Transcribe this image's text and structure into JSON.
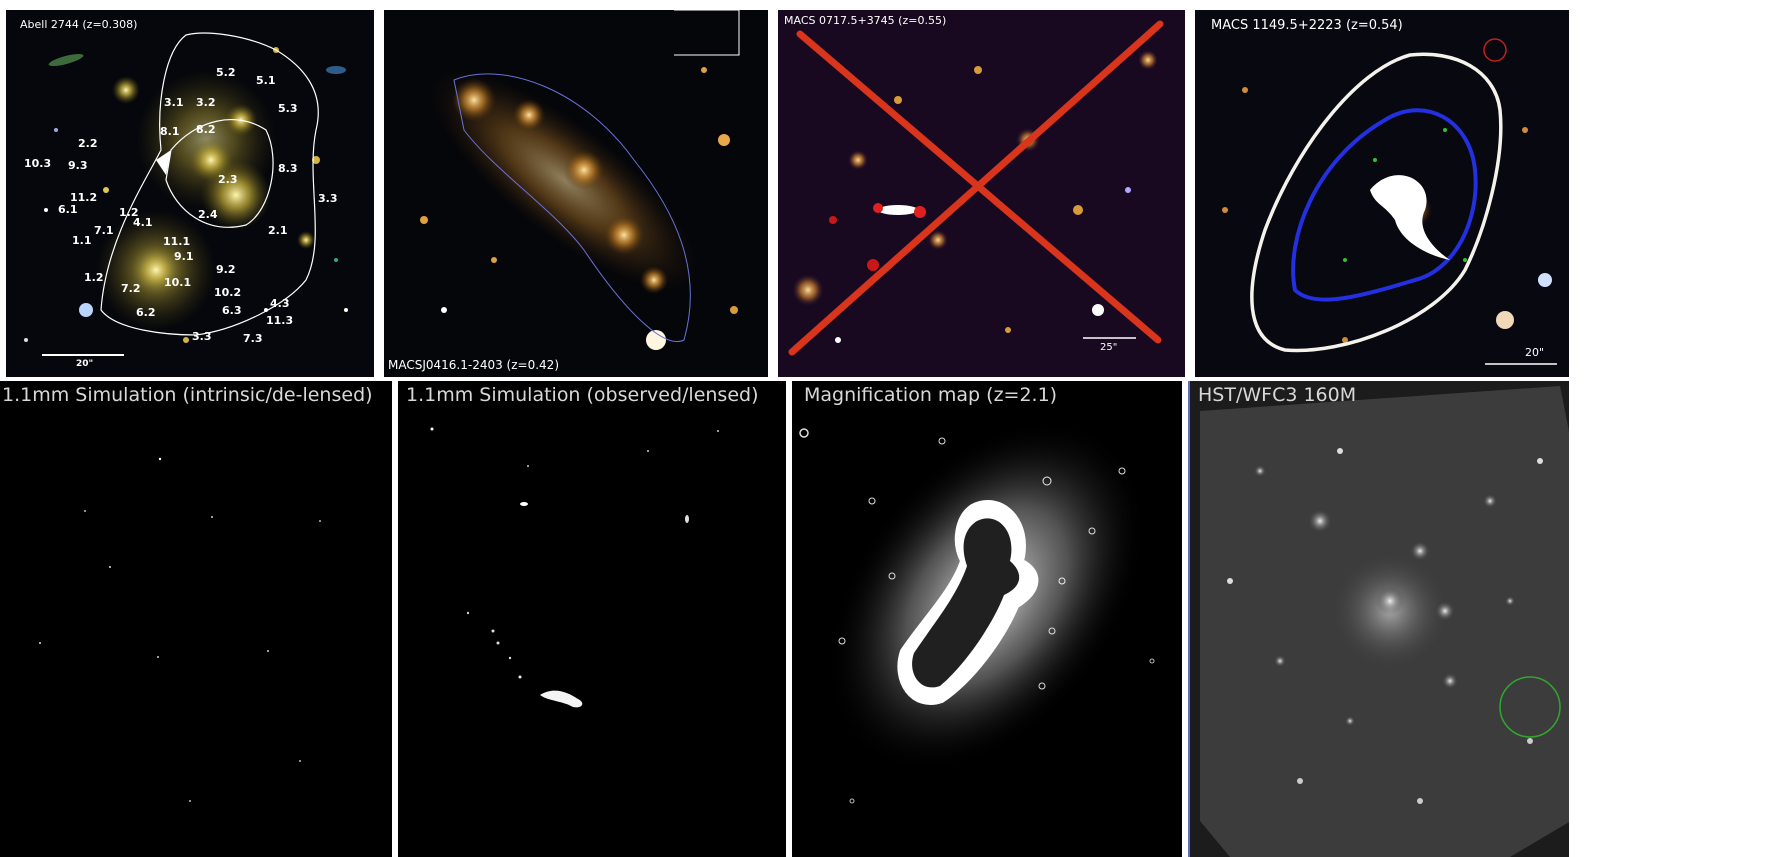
{
  "panels": {
    "a2744": {
      "caption": "Abell 2744 (z=0.308)",
      "scale": "20\"",
      "labels": [
        "5.2",
        "5.1",
        "3.1",
        "3.2",
        "5.3",
        "8.1",
        "8.2",
        "2.2",
        "10.3",
        "9.3",
        "2.3",
        "8.3",
        "3.3",
        "11.2",
        "6.1",
        "1.2",
        "4.1",
        "2.4",
        "2.1",
        "1.1",
        "7.1",
        "11.1",
        "9.1",
        "1.2",
        "7.2",
        "10.1",
        "9.2",
        "10.2",
        "6.2",
        "6.3",
        "4.3",
        "11.3",
        "3.3",
        "7.3"
      ]
    },
    "m0416": {
      "caption": "MACSJ0416.1-2403 (z=0.42)"
    },
    "m0717": {
      "caption": "MACS 0717.5+3745 (z=0.55)",
      "scale": "25\"",
      "cross_color": "#d9341c"
    },
    "m1149": {
      "caption": "MACS 1149.5+2223 (z=0.54)",
      "scale": "20\""
    },
    "sim_intrinsic": {
      "caption": "1.1mm Simulation (intrinsic/de-lensed)"
    },
    "sim_observed": {
      "caption": "1.1mm Simulation (observed/lensed)"
    },
    "magmap": {
      "caption": "Magnification map (z=2.1)"
    },
    "hst": {
      "caption": "HST/WFC3 160M",
      "circle_color": "#2fa82f"
    }
  }
}
